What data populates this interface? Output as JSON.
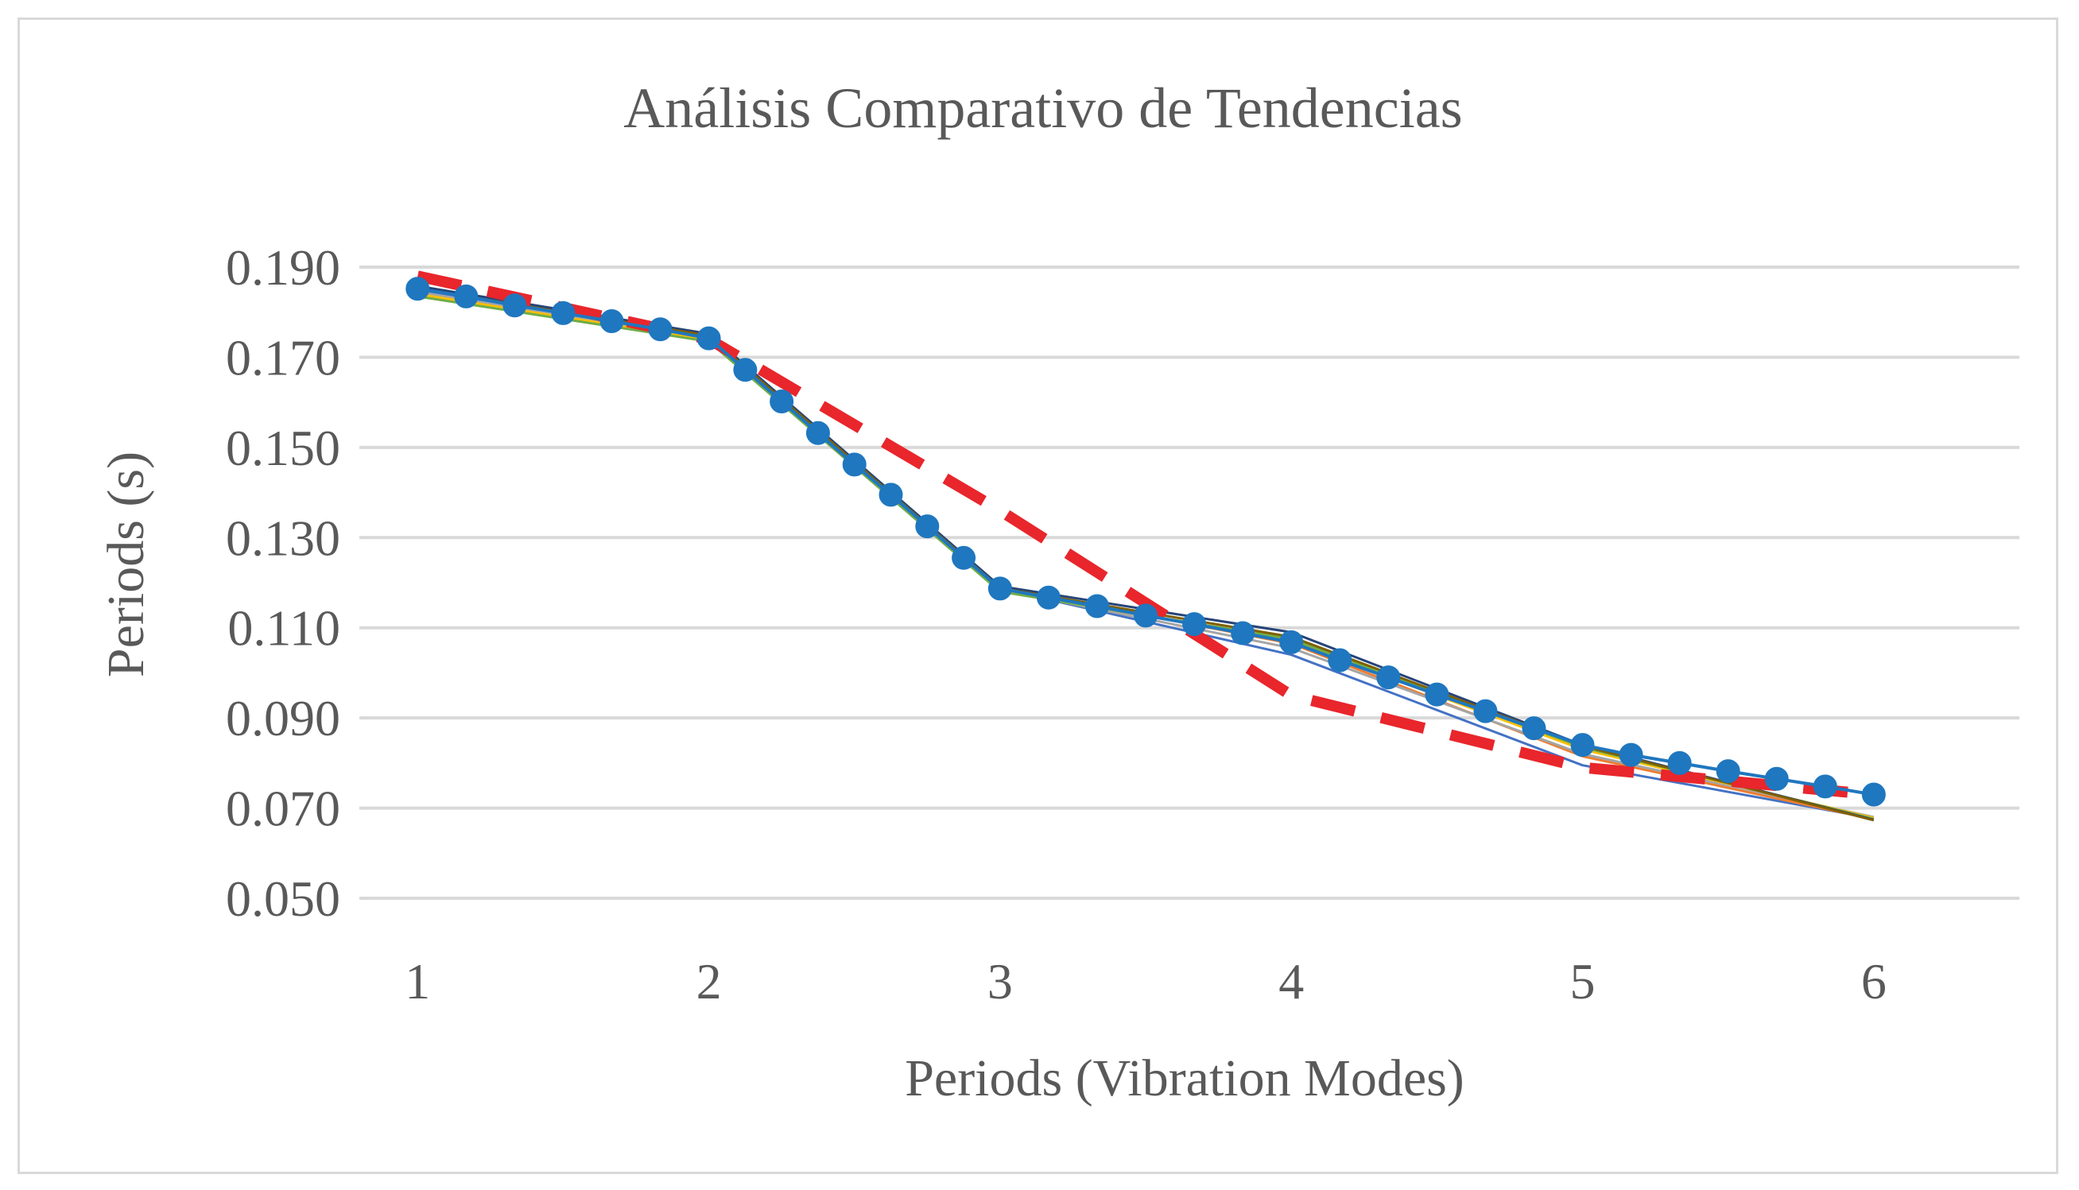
{
  "chart_data": {
    "type": "line",
    "title": "Análisis Comparativo de Tendencias",
    "xlabel": "Periods (Vibration Modes)",
    "ylabel": "Periods (s)",
    "x": [
      1,
      2,
      3,
      4,
      5,
      6
    ],
    "xlim": [
      0.8,
      6.5
    ],
    "ylim": [
      0.05,
      0.19
    ],
    "yticks": [
      "0.190",
      "0.170",
      "0.150",
      "0.130",
      "0.110",
      "0.090",
      "0.070",
      "0.050"
    ],
    "ytick_values": [
      0.19,
      0.17,
      0.15,
      0.13,
      0.11,
      0.09,
      0.07,
      0.05
    ],
    "xticks": [
      "1",
      "2",
      "3",
      "4",
      "5",
      "6"
    ],
    "grid": true,
    "series": [
      {
        "style": "thin",
        "color": "#4472c4",
        "values": [
          0.185,
          0.1745,
          0.1187,
          0.104,
          0.0795,
          0.0677
        ]
      },
      {
        "style": "thin",
        "color": "#ed7d31",
        "values": [
          0.1855,
          0.175,
          0.119,
          0.1065,
          0.0815,
          0.0675
        ]
      },
      {
        "style": "thin",
        "color": "#a5a5a5",
        "values": [
          0.1845,
          0.174,
          0.1185,
          0.1055,
          0.082,
          0.068
        ]
      },
      {
        "style": "thin",
        "color": "#ffc000",
        "values": [
          0.184,
          0.1738,
          0.1183,
          0.107,
          0.083,
          0.0678
        ]
      },
      {
        "style": "thin",
        "color": "#70ad47",
        "values": [
          0.1835,
          0.1735,
          0.118,
          0.1075,
          0.0835,
          0.0676
        ]
      },
      {
        "style": "thin",
        "color": "#264478",
        "values": [
          0.1858,
          0.1752,
          0.1192,
          0.109,
          0.084,
          0.0674
        ]
      },
      {
        "style": "thin",
        "color": "#7f6000",
        "values": [
          0.1852,
          0.1748,
          0.1188,
          0.108,
          0.0838,
          0.0673
        ]
      },
      {
        "style": "dashed",
        "color": "#e8262c",
        "values": [
          0.188,
          0.174,
          0.136,
          0.095,
          0.079,
          0.073
        ]
      },
      {
        "style": "markers",
        "color": "#1f77bf",
        "x": [
          1.0,
          1.1667,
          1.3333,
          1.5,
          1.6667,
          1.8333,
          2.0,
          2.125,
          2.25,
          2.375,
          2.5,
          2.625,
          2.75,
          2.875,
          3.0,
          3.1667,
          3.3333,
          3.5,
          3.6667,
          3.8333,
          4.0,
          4.1667,
          4.3333,
          4.5,
          4.6667,
          4.8333,
          5.0,
          5.1667,
          5.3333,
          5.5,
          5.6667,
          5.8333,
          6.0
        ],
        "values": [
          0.1852,
          0.1835,
          0.1815,
          0.1798,
          0.178,
          0.1762,
          0.1742,
          0.1672,
          0.1602,
          0.1532,
          0.1462,
          0.1395,
          0.1325,
          0.1255,
          0.1187,
          0.1167,
          0.1148,
          0.1127,
          0.1108,
          0.1088,
          0.1068,
          0.1028,
          0.099,
          0.0952,
          0.0915,
          0.0877,
          0.084,
          0.0818,
          0.08,
          0.0782,
          0.0765,
          0.0748,
          0.073
        ]
      }
    ]
  }
}
